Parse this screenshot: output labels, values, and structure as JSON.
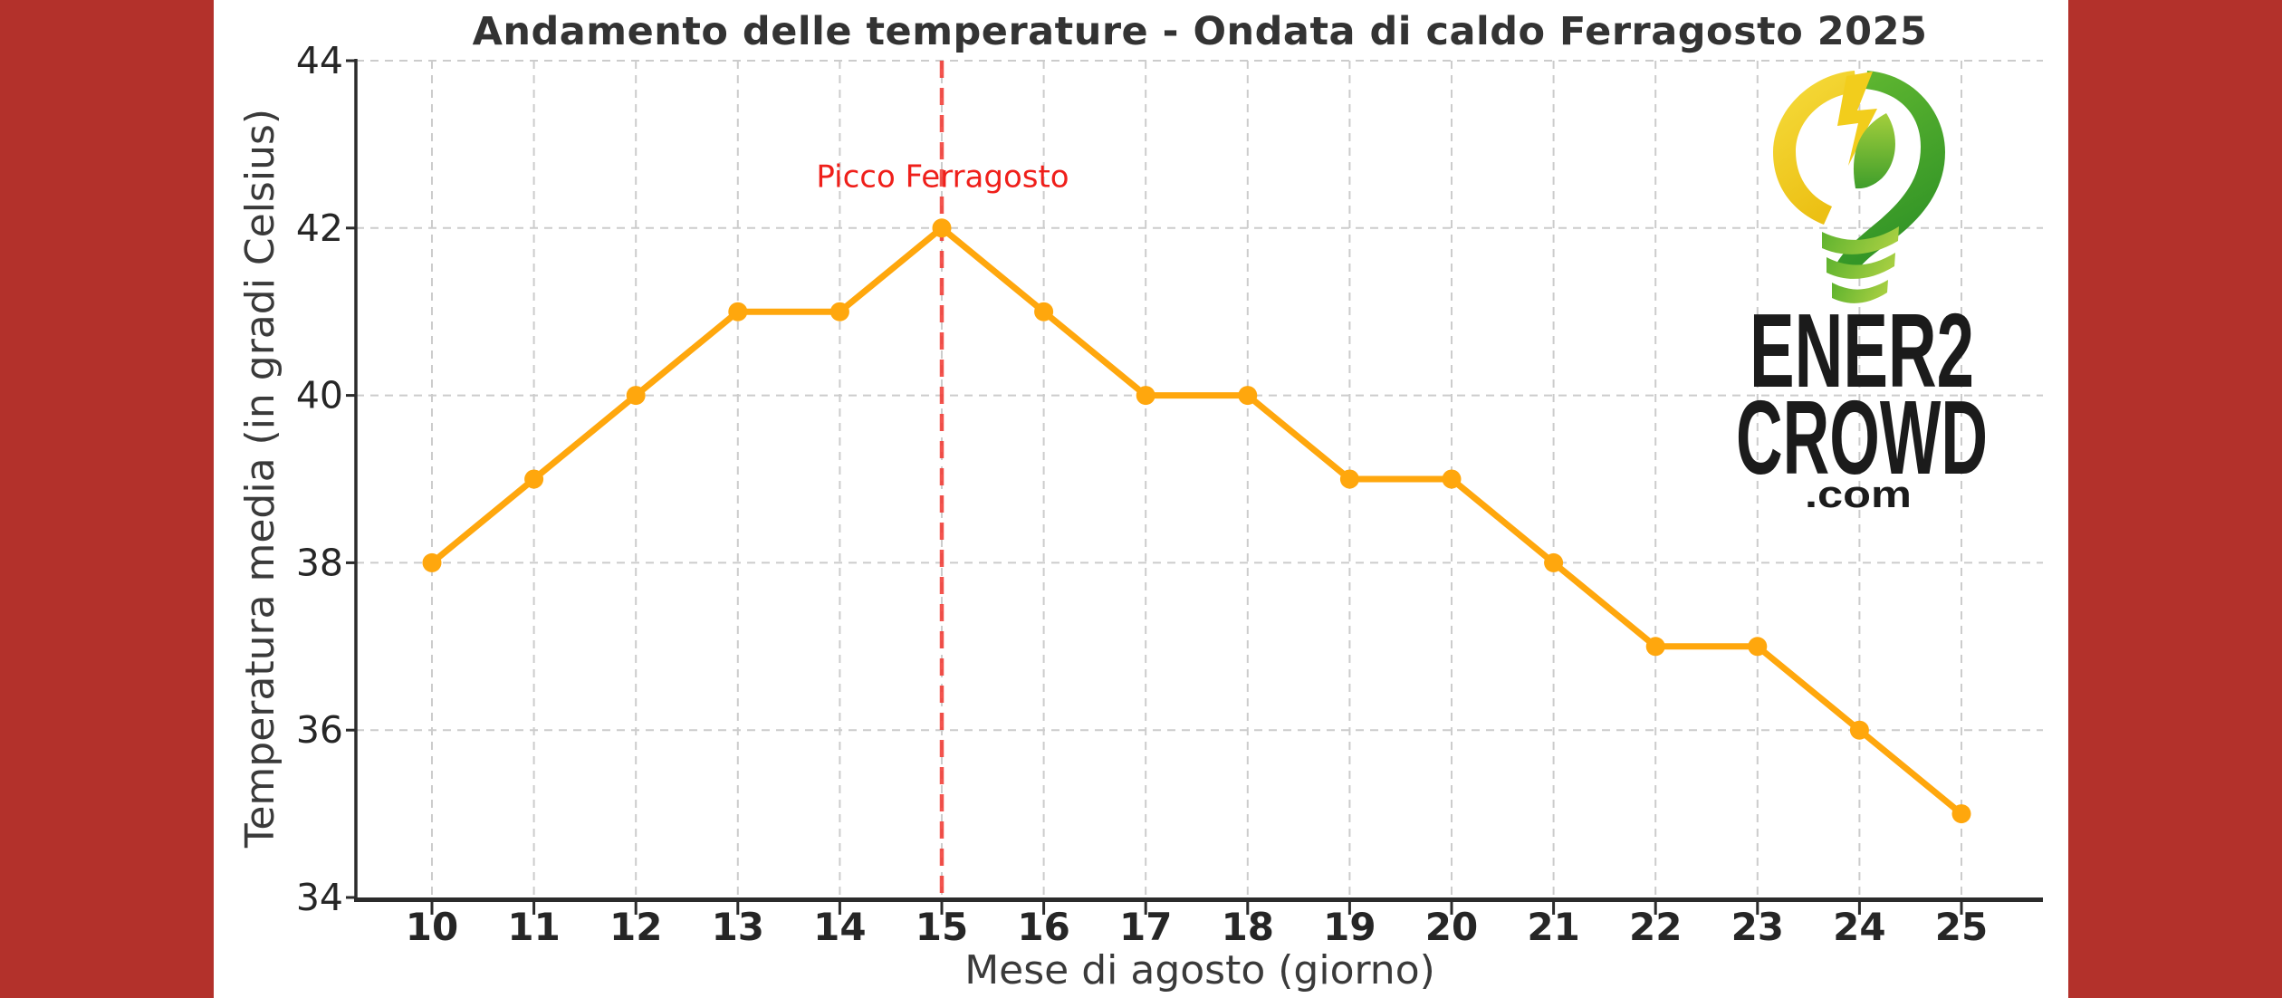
{
  "page": {
    "background": "#ffffff"
  },
  "side_bands": {
    "color": "#b3312b"
  },
  "chart_data": {
    "type": "line",
    "title": "Andamento delle temperature - Ondata di caldo Ferragosto 2025",
    "xlabel": "Mese di agosto (giorno)",
    "ylabel": "Temperatura media (in gradi Celsius)",
    "x": [
      10,
      11,
      12,
      13,
      14,
      15,
      16,
      17,
      18,
      19,
      20,
      21,
      22,
      23,
      24,
      25
    ],
    "series": [
      {
        "name": "Temperatura media",
        "values": [
          38,
          39,
          40,
          41,
          41,
          42,
          41,
          40,
          40,
          39,
          39,
          38,
          37,
          37,
          36,
          35
        ],
        "color": "#ffa70d",
        "marker": "circle"
      }
    ],
    "ylim": [
      34,
      44
    ],
    "yticks": [
      34,
      36,
      38,
      40,
      42,
      44
    ],
    "xticks": [
      10,
      11,
      12,
      13,
      14,
      15,
      16,
      17,
      18,
      19,
      20,
      21,
      22,
      23,
      24,
      25
    ],
    "grid": true,
    "grid_style": "dashed",
    "legend_position": "none",
    "annotation": {
      "text": "Picco Ferragosto",
      "x": 15,
      "y": 42.6,
      "color": "#ef1f1a"
    },
    "vline": {
      "x": 15,
      "style": "dashed",
      "color": "#f23730"
    }
  },
  "colors": {
    "band_red": "#b3312b",
    "line_orange": "#ffa70d",
    "grid_gray": "#cccccc",
    "axis_dark": "#2b2b2b",
    "tick_label": "#262626",
    "title_color": "#333333",
    "annotation_red": "#ef1f1a"
  },
  "logo": {
    "line1": "ENER2",
    "line2": "CROWD",
    "line3": ".com"
  }
}
